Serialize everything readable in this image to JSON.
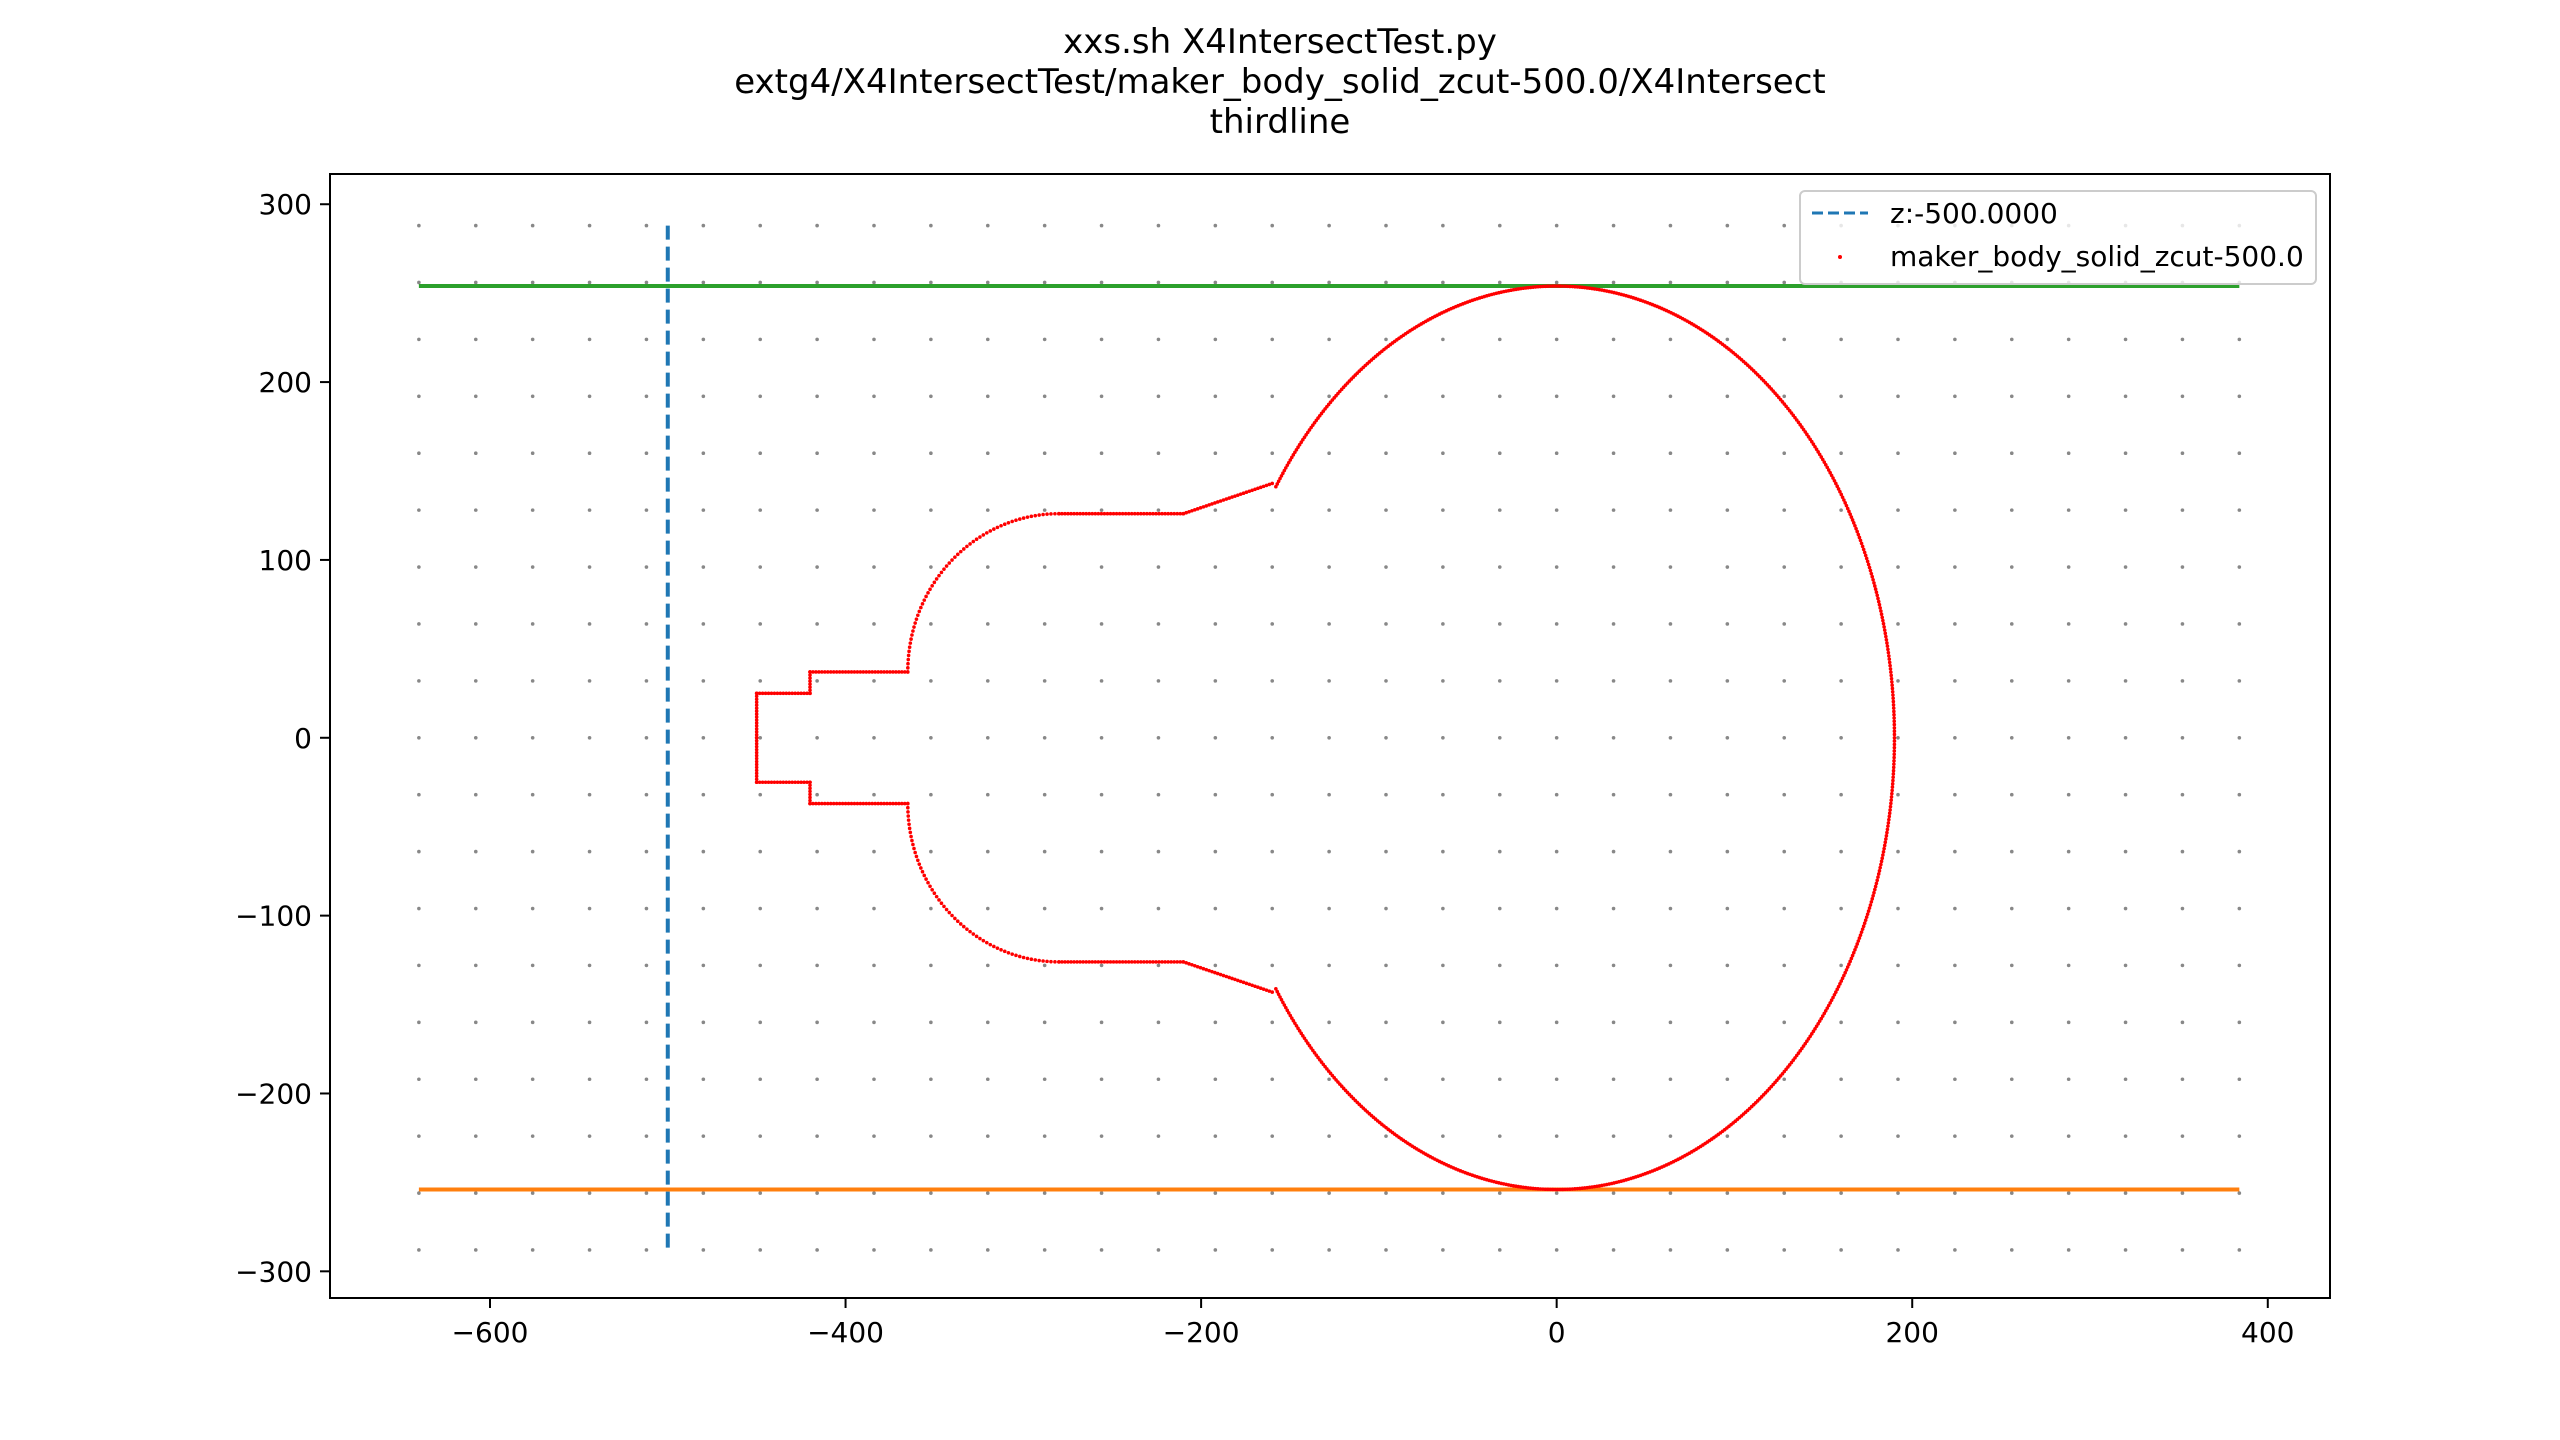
{
  "title": {
    "line1": "xxs.sh X4IntersectTest.py",
    "line2": "extg4/X4IntersectTest/maker_body_solid_zcut-500.0/X4Intersect",
    "line3": "thirdline"
  },
  "chart_data": {
    "type": "scatter",
    "xlim": [
      -690,
      435
    ],
    "ylim": [
      -315,
      317
    ],
    "x_ticks": [
      -600,
      -400,
      -200,
      0,
      200,
      400
    ],
    "y_ticks": [
      -300,
      -200,
      -100,
      0,
      100,
      200,
      300
    ],
    "x_tick_labels": [
      "−600",
      "−400",
      "−200",
      "0",
      "200",
      "400"
    ],
    "y_tick_labels": [
      "−300",
      "−200",
      "−100",
      "0",
      "100",
      "200",
      "300"
    ],
    "grid": "gray dots",
    "legend_position": "top-right",
    "legend": {
      "z_line": "z:-500.0000",
      "points": "maker_body_solid_zcut-500.0"
    },
    "z_cut_line": {
      "x": -500,
      "y_range": [
        -288,
        288
      ],
      "color": "#1f77b4",
      "style": "dashed"
    },
    "horizontal_lines": [
      {
        "y": 254,
        "x_range": [
          -640,
          384
        ],
        "color": "#2ca02c"
      },
      {
        "y": -254,
        "x_range": [
          -640,
          384
        ],
        "color": "#ff7f0e"
      }
    ],
    "grid_points": {
      "x_start": -640,
      "x_step": 32,
      "x_end": 384,
      "y_start": -288,
      "y_step": 32,
      "y_end": 288,
      "color": "#888888"
    },
    "intersect_outline": {
      "color": "#ff0000",
      "vertices": [
        [
          -450,
          -25
        ],
        [
          -450,
          25
        ],
        [
          -420,
          25
        ],
        [
          -420,
          37
        ],
        [
          -365,
          37
        ],
        [
          -280,
          126
        ],
        [
          -210,
          126
        ],
        [
          -160,
          143
        ],
        [
          0,
          254
        ],
        [
          190,
          0
        ],
        [
          0,
          -254
        ],
        [
          -160,
          -143
        ],
        [
          -210,
          -126
        ],
        [
          -280,
          -126
        ],
        [
          -365,
          -37
        ],
        [
          -420,
          -37
        ],
        [
          -420,
          -25
        ],
        [
          -450,
          -25
        ]
      ]
    }
  }
}
